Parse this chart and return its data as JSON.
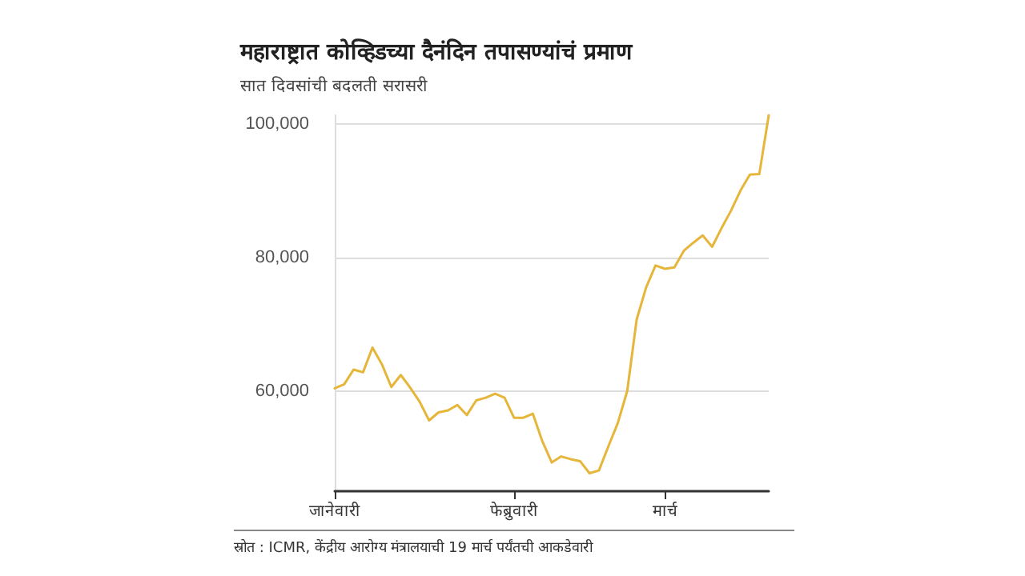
{
  "chart_data": {
    "type": "line",
    "title": "महाराष्ट्रात कोव्हिडच्या दैनंदिन तपासण्यांचं प्रमाण",
    "subtitle": "सात दिवसांची बदलती सरासरी",
    "annotations": [
      "स्रोत : ICMR, केंद्रीय आरोग्य मंत्रालयाची 19 मार्च पर्यंतची आकडेवारी"
    ],
    "categories": [
      "जानेवारी",
      null,
      null,
      null,
      null,
      null,
      null,
      null,
      null,
      null,
      null,
      null,
      null,
      null,
      null,
      null,
      null,
      null,
      null,
      "फेब्रुवारी",
      null,
      null,
      null,
      null,
      null,
      null,
      null,
      null,
      null,
      null,
      null,
      null,
      null,
      null,
      null,
      "मार्च",
      null,
      null,
      null,
      null,
      null,
      null,
      null,
      null,
      null,
      null,
      null
    ],
    "series": [
      {
        "color": "#e6b63a",
        "values": [
          60400,
          61000,
          63200,
          62800,
          66500,
          64000,
          60600,
          62400,
          60500,
          58400,
          55600,
          56800,
          57100,
          57900,
          56400,
          58600,
          59000,
          59600,
          59000,
          56000,
          56000,
          56600,
          52500,
          49300,
          50200,
          49800,
          49500,
          47700,
          48100,
          51700,
          55200,
          60000,
          70700,
          75500,
          78800,
          78300,
          78500,
          81000,
          82200,
          83300,
          81600,
          84400,
          87000,
          90000,
          92400,
          92500,
          101300
        ]
      }
    ],
    "ylim": [
      45000,
      101300
    ],
    "yticks": [
      {
        "value": 60000,
        "label": "60,000"
      },
      {
        "value": 80000,
        "label": "80,000"
      },
      {
        "value": 100000,
        "label": "100,000"
      }
    ],
    "grid": "y",
    "marker": "none",
    "line_style": "solid"
  }
}
